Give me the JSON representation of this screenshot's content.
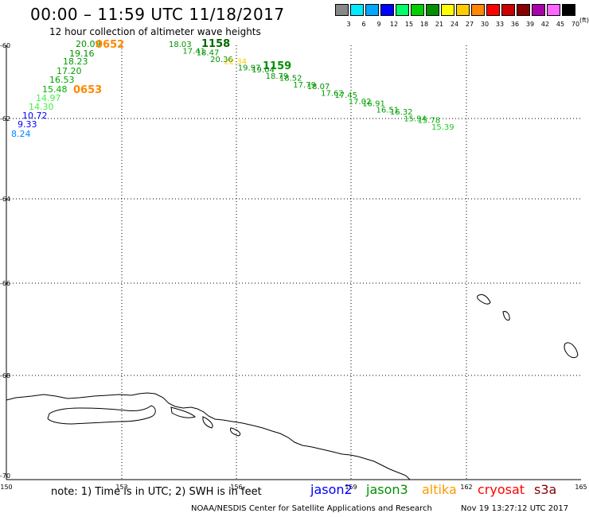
{
  "header": {
    "title": "00:00 – 11:59 UTC 11/18/2017",
    "subtitle": "12 hour collection of altimeter wave heights"
  },
  "legend": {
    "unit": "(ft)",
    "ticks": [
      "3",
      "6",
      "9",
      "12",
      "15",
      "18",
      "21",
      "24",
      "27",
      "30",
      "33",
      "36",
      "39",
      "42",
      "45",
      "70"
    ],
    "colors": [
      "#888888",
      "#00eaff",
      "#00a8ff",
      "#0000ff",
      "#00ff66",
      "#00d000",
      "#009000",
      "#ffff00",
      "#ffcc00",
      "#ff8800",
      "#ff0000",
      "#cc0000",
      "#880000",
      "#aa00aa",
      "#ff66ff",
      "#000000"
    ]
  },
  "map": {
    "lon_labels": [
      "150",
      "153",
      "156",
      "159",
      "162",
      "165"
    ],
    "lat_labels": [
      "-60",
      "-62",
      "-64",
      "-66",
      "-68",
      "-70"
    ],
    "pass_time_labels": [
      {
        "text": "0652",
        "color": "#ff8800"
      },
      {
        "text": "0653",
        "color": "#ff8800"
      },
      {
        "text": "1158",
        "color": "#006600"
      },
      {
        "text": "1159",
        "color": "#009000"
      }
    ],
    "west_track": [
      {
        "text": "20.09",
        "color": "#009000"
      },
      {
        "text": "19.16",
        "color": "#009000"
      },
      {
        "text": "18.23",
        "color": "#00a000"
      },
      {
        "text": "17.20",
        "color": "#00a000"
      },
      {
        "text": "16.53",
        "color": "#00a000"
      },
      {
        "text": "15.48",
        "color": "#00b000"
      },
      {
        "text": "14.97",
        "color": "#44ee44"
      },
      {
        "text": "14.30",
        "color": "#44ee44"
      },
      {
        "text": "10.72",
        "color": "#0000ff"
      },
      {
        "text": "9.33",
        "color": "#0000ff"
      },
      {
        "text": "8.24",
        "color": "#0088ff"
      }
    ],
    "east_track": [
      {
        "text": "18.03",
        "color": "#009000"
      },
      {
        "text": "17.41",
        "color": "#00a000"
      },
      {
        "text": "18.47",
        "color": "#009000"
      },
      {
        "text": "20.36",
        "color": "#009000"
      },
      {
        "text": "22.34",
        "color": "#ffcc00"
      },
      {
        "text": "19.97",
        "color": "#009000"
      },
      {
        "text": "19.04",
        "color": "#009000"
      },
      {
        "text": "18.79",
        "color": "#009000"
      },
      {
        "text": "18.52",
        "color": "#009000"
      },
      {
        "text": "17.79",
        "color": "#00a000"
      },
      {
        "text": "18.07",
        "color": "#009000"
      },
      {
        "text": "17.62",
        "color": "#00a000"
      },
      {
        "text": "17.45",
        "color": "#00a000"
      },
      {
        "text": "17.02",
        "color": "#00a000"
      },
      {
        "text": "16.91",
        "color": "#00a000"
      },
      {
        "text": "16.51",
        "color": "#00a000"
      },
      {
        "text": "16.32",
        "color": "#00a000"
      },
      {
        "text": "15.94",
        "color": "#00b000"
      },
      {
        "text": "15.78",
        "color": "#00b000"
      },
      {
        "text": "15.39",
        "color": "#22cc22"
      }
    ]
  },
  "footer": {
    "note": "note: 1) Time is in UTC; 2) SWH is in feet",
    "satellites": [
      {
        "name": "jason2",
        "color": "#0000ff"
      },
      {
        "name": "jason3",
        "color": "#009000"
      },
      {
        "name": "altika",
        "color": "#ff9900"
      },
      {
        "name": "cryosat",
        "color": "#ff0000"
      },
      {
        "name": "s3a",
        "color": "#880000"
      }
    ],
    "credit": "NOAA/NESDIS Center for Satellite Applications and Research",
    "timestamp": "Nov 19 13:27:12 UTC 2017"
  }
}
